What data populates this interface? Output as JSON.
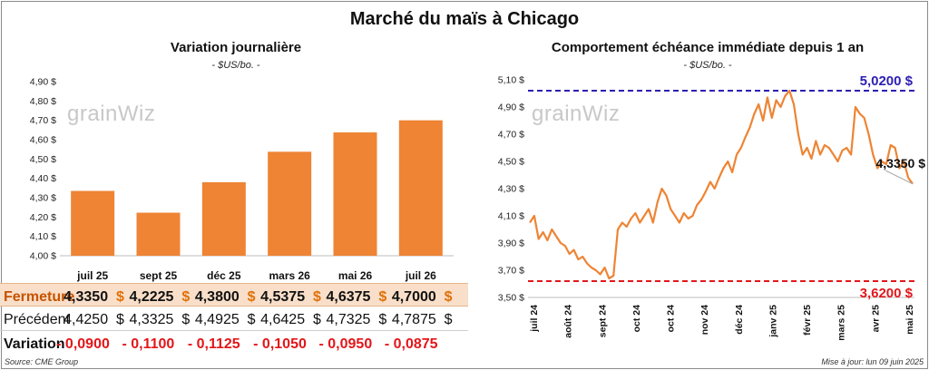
{
  "main_title": "Marché du maïs à Chicago",
  "left": {
    "title": "Variation journalière",
    "subtitle": "- $US/bo. -",
    "watermark": "grainWiz",
    "chart_data": {
      "type": "bar",
      "categories": [
        "juil 25",
        "sept 25",
        "déc 25",
        "mars 26",
        "mai 26",
        "juil 26"
      ],
      "values": [
        4.335,
        4.2225,
        4.38,
        4.5375,
        4.6375,
        4.7
      ],
      "ylim": [
        4.0,
        4.9
      ],
      "yticks": [
        "4,00 $",
        "4,10 $",
        "4,20 $",
        "4,30 $",
        "4,40 $",
        "4,50 $",
        "4,60 $",
        "4,70 $",
        "4,80 $",
        "4,90 $"
      ],
      "bar_color": "#ee8434",
      "grid": false
    },
    "table": {
      "rows": [
        {
          "label": "Fermeture",
          "values": [
            "4,3350",
            "4,2225",
            "4,3800",
            "4,5375",
            "4,6375",
            "4,7000"
          ],
          "unit": "$"
        },
        {
          "label": "Précédent",
          "values": [
            "4,4250",
            "4,3325",
            "4,4925",
            "4,6425",
            "4,7325",
            "4,7875"
          ],
          "unit": "$"
        },
        {
          "label": "Variation",
          "values": [
            "- 0,0900",
            "- 0,1100",
            "- 0,1125",
            "- 0,1050",
            "- 0,0950",
            "- 0,0875"
          ]
        }
      ]
    },
    "source": "Source: CME Group"
  },
  "right": {
    "title": "Comportement échéance immédiate depuis 1 an",
    "subtitle": "- $US/bo. -",
    "watermark": "grainWiz",
    "chart_data": {
      "type": "line",
      "x_labels": [
        "juil 24",
        "août 24",
        "sept 24",
        "oct 24",
        "oct 24",
        "nov 24",
        "déc 24",
        "janv 25",
        "févr 25",
        "mars 25",
        "avr 25",
        "mai 25"
      ],
      "yticks": [
        "3,50 $",
        "3,70 $",
        "3,90 $",
        "4,10 $",
        "4,30 $",
        "4,50 $",
        "4,70 $",
        "4,90 $",
        "5,10 $"
      ],
      "ylim": [
        3.5,
        5.1
      ],
      "series": [
        {
          "color": "#ee8434",
          "values": [
            4.05,
            4.1,
            3.93,
            3.98,
            3.92,
            4.0,
            3.95,
            3.9,
            3.88,
            3.82,
            3.85,
            3.78,
            3.8,
            3.75,
            3.72,
            3.7,
            3.67,
            3.72,
            3.64,
            3.66,
            4.0,
            4.05,
            4.02,
            4.08,
            4.12,
            4.05,
            4.1,
            4.15,
            4.05,
            4.2,
            4.3,
            4.25,
            4.15,
            4.1,
            4.05,
            4.12,
            4.08,
            4.1,
            4.18,
            4.22,
            4.28,
            4.35,
            4.3,
            4.38,
            4.45,
            4.5,
            4.42,
            4.55,
            4.6,
            4.68,
            4.75,
            4.85,
            4.92,
            4.8,
            4.97,
            4.82,
            4.95,
            4.9,
            4.98,
            5.02,
            4.92,
            4.7,
            4.55,
            4.6,
            4.52,
            4.65,
            4.55,
            4.62,
            4.6,
            4.55,
            4.5,
            4.58,
            4.6,
            4.55,
            4.9,
            4.85,
            4.82,
            4.7,
            4.55,
            4.45,
            4.5,
            4.48,
            4.62,
            4.6,
            4.45,
            4.5,
            4.38,
            4.335
          ]
        }
      ],
      "high_value": 5.02,
      "low_value": 3.62,
      "high_label": "5,0200 $",
      "low_label": "3,6200 $",
      "last_label": "4,3350 $",
      "high_color": "#2d1fb4",
      "low_color": "#e3161a"
    },
    "updated": "Mise à jour: lun 09 juin 2025"
  }
}
